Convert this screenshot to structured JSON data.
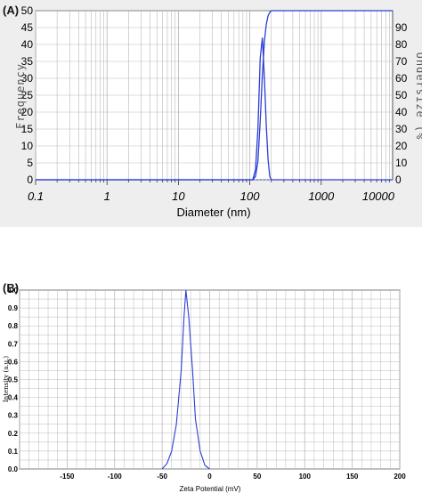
{
  "chart_data": [
    {
      "panel": "(A)",
      "type": "line",
      "xlabel": "Diameter (nm)",
      "ylabel": "Frequency",
      "y2label": "Undersize (%",
      "xscale": "log",
      "xlim": [
        0.1,
        10000
      ],
      "ylim": [
        0,
        50
      ],
      "y2lim": [
        0,
        100
      ],
      "x_ticks": [
        "0.1",
        "1",
        "10",
        "100",
        "1000",
        "10000"
      ],
      "x_tick_values": [
        0.1,
        1,
        10,
        100,
        1000,
        10000
      ],
      "y_ticks": [
        "0",
        "5",
        "10",
        "15",
        "20",
        "25",
        "30",
        "35",
        "40",
        "45",
        "50"
      ],
      "y2_ticks": [
        "0",
        "10",
        "20",
        "30",
        "40",
        "50",
        "60",
        "70",
        "80",
        "90"
      ],
      "grid": true,
      "series": [
        {
          "role": "frequency",
          "axis": "left",
          "x": [
            0.1,
            110,
            120,
            130,
            140,
            150,
            160,
            170,
            180,
            190,
            200,
            10000
          ],
          "y": [
            0,
            0,
            3,
            15,
            36,
            42,
            30,
            16,
            6,
            1,
            0,
            0
          ]
        },
        {
          "role": "undersize",
          "axis": "right",
          "x": [
            0.1,
            110,
            120,
            130,
            140,
            150,
            160,
            170,
            180,
            190,
            200,
            10000
          ],
          "y": [
            0,
            0,
            2,
            11,
            35,
            62,
            82,
            92,
            97,
            99,
            100,
            100
          ]
        }
      ],
      "colors": {
        "line": "#2b3fd6",
        "grid": "#b9b9b9",
        "background": "#ffffff"
      }
    },
    {
      "panel": "(B)",
      "type": "line",
      "xlabel": "Zeta Potential (mV)",
      "ylabel": "Intensity (a.u.)",
      "xlim": [
        -200,
        200
      ],
      "ylim": [
        0,
        1
      ],
      "x_ticks": [
        "-150",
        "-100",
        "-50",
        "0",
        "50",
        "100",
        "150",
        "200"
      ],
      "x_tick_values": [
        -150,
        -100,
        -50,
        0,
        50,
        100,
        150,
        200
      ],
      "y_ticks": [
        "0.0",
        "0.1",
        "0.2",
        "0.3",
        "0.4",
        "0.5",
        "0.6",
        "0.7",
        "0.8",
        "0.9",
        "1.0"
      ],
      "y_tick_values": [
        0,
        0.1,
        0.2,
        0.3,
        0.4,
        0.5,
        0.6,
        0.7,
        0.8,
        0.9,
        1.0
      ],
      "grid": true,
      "series": [
        {
          "x": [
            -50,
            -45,
            -40,
            -35,
            -30,
            -27,
            -25,
            -22,
            -18,
            -15,
            -10,
            -5,
            0
          ],
          "y": [
            0,
            0.03,
            0.1,
            0.25,
            0.55,
            0.85,
            1.0,
            0.85,
            0.55,
            0.28,
            0.1,
            0.02,
            0
          ]
        }
      ],
      "colors": {
        "line": "#2b3fd6",
        "grid": "#b9b9b9",
        "background": "#ffffff"
      }
    }
  ]
}
